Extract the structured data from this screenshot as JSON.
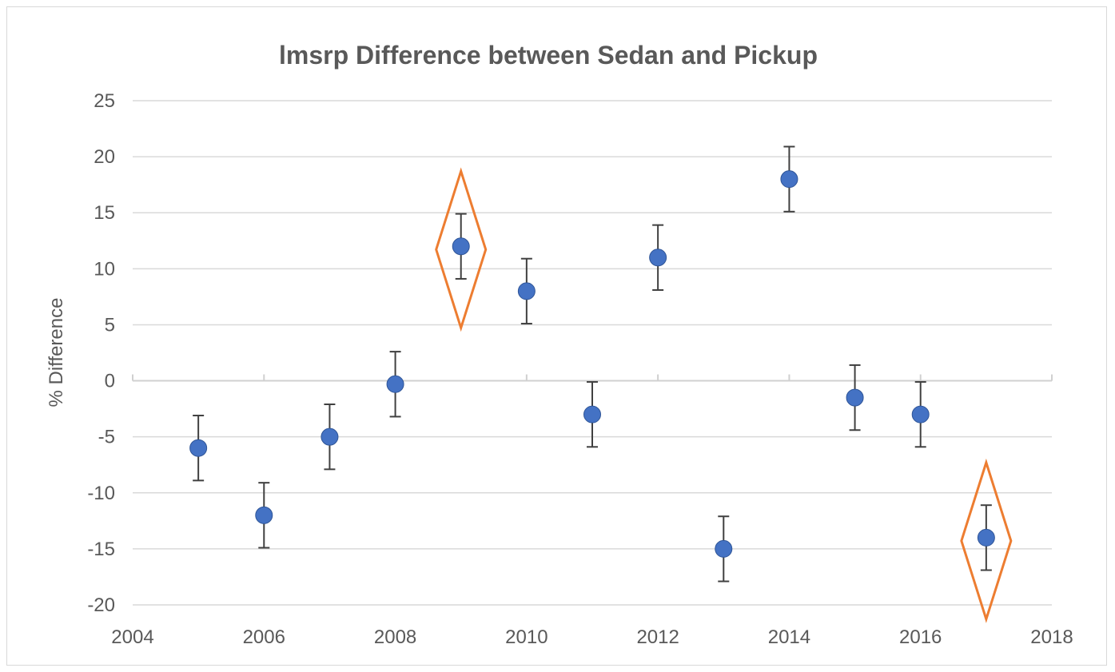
{
  "chart_data": {
    "type": "scatter",
    "title": "lmsrp Difference between Sedan and Pickup",
    "xlabel": "",
    "ylabel": "% Difference",
    "xlim": [
      2004,
      2018
    ],
    "ylim": [
      -20,
      25
    ],
    "x_ticks": [
      "2004",
      "2006",
      "2008",
      "2010",
      "2012",
      "2014",
      "2016",
      "2018"
    ],
    "y_ticks": [
      "25",
      "20",
      "15",
      "10",
      "5",
      "0",
      "-5",
      "-10",
      "-15",
      "-20"
    ],
    "grid": "horizontal",
    "legend": "none",
    "series": [
      {
        "x": [
          2005,
          2006,
          2007,
          2008,
          2009,
          2010,
          2011,
          2012,
          2013,
          2014,
          2015,
          2016,
          2017
        ],
        "y": [
          -6,
          -12,
          -5,
          -0.3,
          12,
          8,
          -3,
          11,
          -15,
          18,
          -1.5,
          -3,
          -14
        ],
        "error": 2.9,
        "color": "#4472c4"
      }
    ],
    "highlighted_x": [
      2009,
      2017
    ],
    "highlight_color": "#ed7d31",
    "errorbar_color": "#404040",
    "grid_color": "#d9d9d9"
  }
}
